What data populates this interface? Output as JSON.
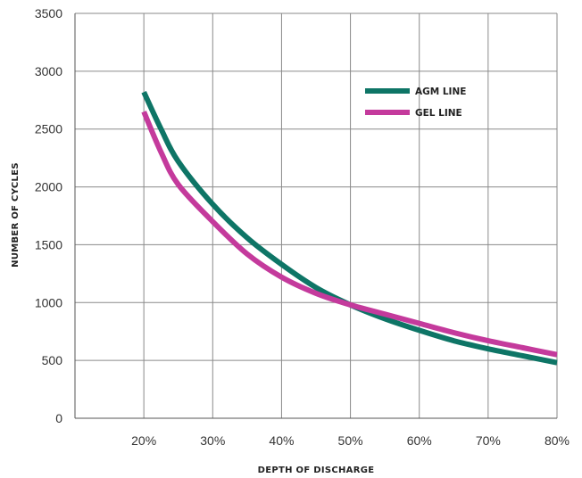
{
  "chart_data": {
    "type": "line",
    "title": "",
    "xlabel": "DEPTH OF DISCHARGE",
    "ylabel": "NUMBER OF CYCLES",
    "x_ticks": [
      "20%",
      "30%",
      "40%",
      "50%",
      "60%",
      "70%",
      "80%"
    ],
    "y_ticks": [
      "0",
      "500",
      "1000",
      "1500",
      "2000",
      "2500",
      "3000",
      "3500"
    ],
    "xlim": [
      10,
      80
    ],
    "ylim": [
      0,
      3500
    ],
    "grid": true,
    "legend_position": "top-right",
    "series": [
      {
        "name": "AGM LINE",
        "color": "#0e7566",
        "x": [
          20,
          22.5,
          25,
          30,
          35,
          40,
          45,
          50,
          55,
          60,
          65,
          70,
          75,
          80
        ],
        "y": [
          2820,
          2500,
          2220,
          1850,
          1560,
          1330,
          1130,
          980,
          860,
          760,
          670,
          600,
          540,
          480
        ]
      },
      {
        "name": "GEL LINE",
        "color": "#c43a9c",
        "x": [
          20,
          22.5,
          25,
          30,
          35,
          40,
          45,
          50,
          55,
          60,
          65,
          70,
          75,
          80
        ],
        "y": [
          2650,
          2300,
          2020,
          1700,
          1420,
          1220,
          1080,
          980,
          900,
          820,
          740,
          670,
          610,
          550
        ]
      }
    ]
  }
}
